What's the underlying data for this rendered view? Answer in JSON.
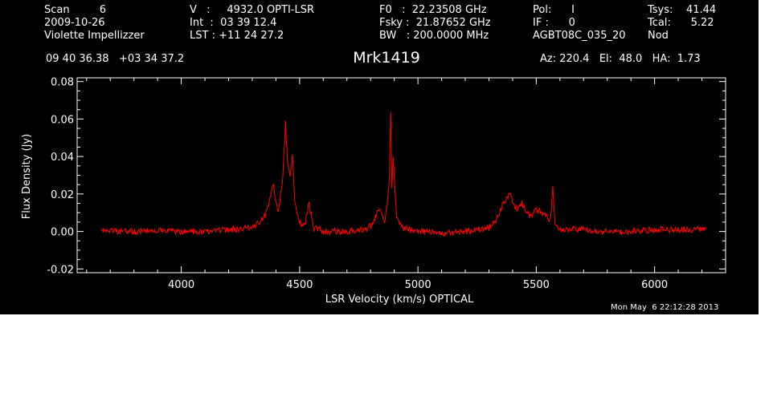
{
  "header": {
    "col1": [
      "Scan         6",
      "2009-10-26",
      "Violette Impellizzer"
    ],
    "col2": [
      "V   :     4932.0 OPTI-LSR",
      "Int  :  03 39 12.4",
      "LST : +11 24 27.2"
    ],
    "col3": [
      "F0   :  22.23508 GHz",
      "Fsky :  21.87652 GHz",
      "BW   : 200.0000 MHz"
    ],
    "col4": [
      "Pol:      I",
      "IF :      0",
      "AGBT08C_035_20"
    ],
    "col5": [
      "Tsys:    41.44",
      "Tcal:      5.22",
      "Nod"
    ],
    "coords": "09 40 36.38   +03 34 37.2",
    "title": "Mrk1419",
    "az_el_ha": "Az: 220.4   El:  48.0   HA:  1.73",
    "timestamp": "Mon May  6 22:12:28 2013"
  },
  "colors": {
    "background": "#000000",
    "axes": "#ffffff",
    "trace": "#ff0000"
  },
  "chart_data": {
    "type": "line",
    "xlabel": "LSR Velocity (km/s) OPTICAL",
    "ylabel": "Flux Density (Jy)",
    "xlim": [
      3560,
      6300
    ],
    "ylim": [
      -0.022,
      0.082
    ],
    "xticks": [
      4000,
      4500,
      5000,
      5500,
      6000
    ],
    "yticks": [
      -0.02,
      0.0,
      0.02,
      0.04,
      0.06,
      0.08
    ],
    "ytick_labels": [
      "-0.02",
      "0.00",
      "0.02",
      "0.04",
      "0.06",
      "0.08"
    ],
    "grid": false,
    "series": [
      {
        "x": [
          3660,
          3700,
          3800,
          3900,
          4000,
          4100,
          4200,
          4300,
          4340,
          4360,
          4380,
          4390,
          4400,
          4410,
          4420,
          4430,
          4440,
          4450,
          4460,
          4470,
          4480,
          4490,
          4500,
          4520,
          4540,
          4560,
          4580,
          4600,
          4700,
          4780,
          4800,
          4820,
          4840,
          4860,
          4870,
          4880,
          4885,
          4890,
          4895,
          4900,
          4910,
          4920,
          4940,
          4960,
          5000,
          5100,
          5200,
          5300,
          5340,
          5360,
          5380,
          5390,
          5400,
          5420,
          5440,
          5460,
          5480,
          5500,
          5520,
          5540,
          5560,
          5570,
          5580,
          5600,
          5700,
          5800,
          5900,
          6000,
          6100,
          6200,
          6220
        ],
        "y": [
          0.001,
          0.0,
          0.0,
          0.001,
          0.0,
          0.0,
          0.001,
          0.002,
          0.006,
          0.01,
          0.02,
          0.025,
          0.015,
          0.01,
          0.02,
          0.03,
          0.058,
          0.035,
          0.03,
          0.04,
          0.015,
          0.01,
          0.005,
          0.003,
          0.015,
          0.001,
          0.002,
          0.0,
          0.0,
          0.001,
          0.003,
          0.008,
          0.012,
          0.006,
          0.015,
          0.03,
          0.064,
          0.022,
          0.04,
          0.03,
          0.008,
          0.004,
          0.002,
          0.001,
          0.0,
          -0.001,
          0.0,
          0.002,
          0.008,
          0.015,
          0.018,
          0.022,
          0.015,
          0.012,
          0.015,
          0.01,
          0.008,
          0.012,
          0.01,
          0.008,
          0.006,
          0.024,
          0.004,
          0.001,
          0.001,
          0.0,
          0.0,
          0.001,
          0.001,
          0.001,
          0.002
        ]
      }
    ]
  }
}
